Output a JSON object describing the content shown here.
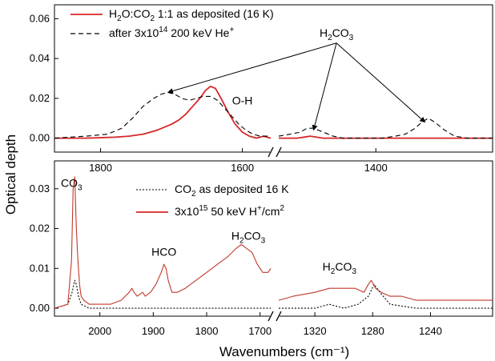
{
  "figure": {
    "ylabel": "Optical depth",
    "xlabel": "Wavenumbers (cm⁻¹)"
  },
  "chart_data": [
    {
      "type": "line",
      "panel": "top",
      "xlim": [
        1865,
        1222
      ],
      "xbreak": [
        1560,
        1548
      ],
      "ylim": [
        -0.007,
        0.067
      ],
      "yticks": [
        0.0,
        0.02,
        0.04,
        0.06
      ],
      "ytick_labels": [
        "0.00",
        "0.02",
        "0.04",
        "0.06"
      ],
      "xticks": [
        1800,
        1600,
        1400
      ],
      "xtick_labels": [
        "1800",
        "1600",
        "1400"
      ],
      "legend": {
        "placement": "top-left",
        "entries": [
          {
            "parts": [
              [
                "H",
                ""
              ],
              [
                "2",
                "sub"
              ],
              [
                "O:CO",
                ""
              ],
              [
                "2",
                "sub"
              ],
              [
                " 1:1 as deposited (16 K)",
                ""
              ]
            ],
            "style": "solid-red"
          },
          {
            "parts": [
              [
                "after 3x10",
                ""
              ],
              [
                "14",
                "sup"
              ],
              [
                " 200 keV He",
                ""
              ],
              [
                "+",
                "sup"
              ]
            ],
            "style": "dashed-black"
          }
        ]
      },
      "annotations": [
        {
          "id": "h2co3",
          "parts": [
            [
              "H",
              ""
            ],
            [
              "2",
              "sub"
            ],
            [
              "CO",
              ""
            ],
            [
              "3",
              "sub"
            ]
          ],
          "at": [
            1460,
            0.051
          ],
          "arrows_to": [
            [
              1705,
              0.023
            ],
            [
              1495,
              0.004
            ],
            [
              1325,
              0.008
            ]
          ]
        },
        {
          "id": "oh",
          "parts": [
            [
              "O-H",
              ""
            ]
          ],
          "at": [
            1600,
            0.017
          ]
        }
      ],
      "series": [
        {
          "name": "H₂O:CO₂ 1:1 as deposited (16 K)",
          "color": "#d62728",
          "dash": "solid",
          "x": [
            1865,
            1820,
            1780,
            1760,
            1740,
            1720,
            1700,
            1690,
            1680,
            1670,
            1660,
            1652,
            1645,
            1638,
            1630,
            1620,
            1610,
            1600,
            1590,
            1580,
            1570,
            1560,
            1548,
            1520,
            1500,
            1480,
            1450,
            1420,
            1400,
            1380,
            1350,
            1320,
            1300,
            1280,
            1250,
            1222
          ],
          "y": [
            0.0,
            0.0,
            0.0005,
            0.001,
            0.002,
            0.004,
            0.007,
            0.009,
            0.012,
            0.016,
            0.02,
            0.024,
            0.026,
            0.025,
            0.02,
            0.013,
            0.007,
            0.003,
            0.001,
            0.0,
            0.001,
            0.0,
            0.0,
            0.0,
            0.001,
            0.0,
            0.0,
            0.0,
            0.0,
            0.0,
            0.0,
            0.0,
            0.0,
            0.0,
            0.0,
            0.0
          ]
        },
        {
          "name": "after 3x10¹⁴ 200 keV He⁺",
          "color": "#000000",
          "dash": "dashed",
          "x": [
            1865,
            1820,
            1790,
            1770,
            1755,
            1740,
            1725,
            1715,
            1705,
            1695,
            1685,
            1675,
            1665,
            1655,
            1645,
            1635,
            1625,
            1615,
            1605,
            1595,
            1585,
            1575,
            1560,
            1548,
            1530,
            1515,
            1505,
            1495,
            1480,
            1465,
            1450,
            1430,
            1410,
            1390,
            1370,
            1355,
            1340,
            1330,
            1320,
            1310,
            1295,
            1280,
            1260,
            1240,
            1222
          ],
          "y": [
            0.0,
            0.001,
            0.002,
            0.005,
            0.01,
            0.016,
            0.02,
            0.022,
            0.023,
            0.022,
            0.02,
            0.019,
            0.02,
            0.021,
            0.021,
            0.019,
            0.015,
            0.011,
            0.007,
            0.004,
            0.002,
            0.001,
            0.001,
            0.001,
            0.002,
            0.003,
            0.005,
            0.005,
            0.003,
            0.001,
            0.0,
            0.0,
            0.0,
            0.0,
            0.001,
            0.002,
            0.005,
            0.008,
            0.01,
            0.008,
            0.004,
            0.001,
            0.0,
            0.0,
            0.0
          ]
        }
      ]
    },
    {
      "type": "line",
      "panel": "bottom",
      "xlim": [
        2085,
        1197
      ],
      "xbreak": [
        1680,
        1345
      ],
      "ylim": [
        -0.002,
        0.037
      ],
      "yticks": [
        0.0,
        0.01,
        0.02,
        0.03
      ],
      "ytick_labels": [
        "0.00",
        "0.01",
        "0.02",
        "0.03"
      ],
      "xticks": [
        2000,
        1900,
        1800,
        1700,
        1320,
        1280,
        1240
      ],
      "xtick_labels": [
        "2000",
        "1900",
        "1800",
        "1700",
        "1320",
        "1280",
        "1240"
      ],
      "legend": {
        "placement": "top-center",
        "entries": [
          {
            "parts": [
              [
                "CO",
                ""
              ],
              [
                "2",
                "sub"
              ],
              [
                " as deposited 16 K",
                ""
              ]
            ],
            "style": "dotted-black"
          },
          {
            "parts": [
              [
                "3x10",
                ""
              ],
              [
                "15",
                "sup"
              ],
              [
                " 50 keV H",
                ""
              ],
              [
                "+",
                "sup"
              ],
              [
                "/cm",
                ""
              ],
              [
                "2",
                "sup"
              ]
            ],
            "style": "solid-red"
          }
        ]
      },
      "annotations": [
        {
          "id": "co3",
          "parts": [
            [
              "CO",
              ""
            ],
            [
              "3",
              "sub"
            ]
          ],
          "at": [
            2053,
            0.0305
          ]
        },
        {
          "id": "hco",
          "parts": [
            [
              "HCO",
              ""
            ]
          ],
          "at": [
            1880,
            0.0132
          ]
        },
        {
          "id": "h2co3-a",
          "parts": [
            [
              "H",
              ""
            ],
            [
              "2",
              "sub"
            ],
            [
              "CO",
              ""
            ],
            [
              "3",
              "sub"
            ]
          ],
          "at": [
            1722,
            0.0172
          ]
        },
        {
          "id": "h2co3-b",
          "parts": [
            [
              "H",
              ""
            ],
            [
              "2",
              "sub"
            ],
            [
              "CO",
              ""
            ],
            [
              "3",
              "sub"
            ]
          ],
          "at": [
            1303,
            0.0095
          ]
        }
      ],
      "series": [
        {
          "name": "CO₂ as deposited 16 K",
          "color": "#000000",
          "dash": "dotted",
          "x": [
            2085,
            2060,
            2052,
            2047,
            2044,
            2040,
            2035,
            2020,
            2000,
            1960,
            1940,
            1920,
            1880,
            1850,
            1800,
            1750,
            1700,
            1680,
            1345,
            1330,
            1320,
            1310,
            1300,
            1290,
            1283,
            1279,
            1275,
            1268,
            1250,
            1230,
            1210,
            1197
          ],
          "y": [
            0.0,
            0.001,
            0.004,
            0.007,
            0.006,
            0.003,
            0.001,
            0.0,
            0.0,
            0.0,
            0.0,
            0.0,
            0.0,
            0.0,
            0.0,
            0.0,
            0.0,
            0.0,
            0.0,
            0.0,
            0.0,
            0.001,
            0.0,
            0.001,
            0.003,
            0.006,
            0.004,
            0.001,
            0.0,
            0.0,
            0.0,
            0.0
          ]
        },
        {
          "name": "3x10¹⁵ 50 keV H⁺/cm²",
          "color": "#c0392b",
          "dash": "solid",
          "x": [
            2085,
            2060,
            2053,
            2050,
            2047,
            2044,
            2041,
            2038,
            2035,
            2030,
            2020,
            2000,
            1980,
            1960,
            1945,
            1940,
            1936,
            1930,
            1920,
            1915,
            1905,
            1895,
            1885,
            1880,
            1876,
            1872,
            1865,
            1855,
            1840,
            1820,
            1800,
            1780,
            1760,
            1745,
            1735,
            1725,
            1715,
            1705,
            1700,
            1695,
            1690,
            1685,
            1680,
            1345,
            1335,
            1320,
            1310,
            1300,
            1292,
            1286,
            1283,
            1281,
            1278,
            1274,
            1268,
            1260,
            1250,
            1240,
            1230,
            1220,
            1210,
            1197
          ],
          "y": [
            0.0,
            0.001,
            0.012,
            0.03,
            0.033,
            0.02,
            0.012,
            0.006,
            0.003,
            0.002,
            0.001,
            0.001,
            0.001,
            0.002,
            0.004,
            0.005,
            0.004,
            0.003,
            0.004,
            0.003,
            0.004,
            0.006,
            0.009,
            0.011,
            0.01,
            0.007,
            0.004,
            0.004,
            0.005,
            0.007,
            0.009,
            0.011,
            0.013,
            0.015,
            0.016,
            0.015,
            0.014,
            0.011,
            0.01,
            0.009,
            0.009,
            0.009,
            0.01,
            0.002,
            0.003,
            0.004,
            0.005,
            0.005,
            0.005,
            0.004,
            0.006,
            0.007,
            0.005,
            0.004,
            0.003,
            0.003,
            0.002,
            0.002,
            0.002,
            0.002,
            0.002,
            0.002
          ]
        }
      ]
    }
  ]
}
